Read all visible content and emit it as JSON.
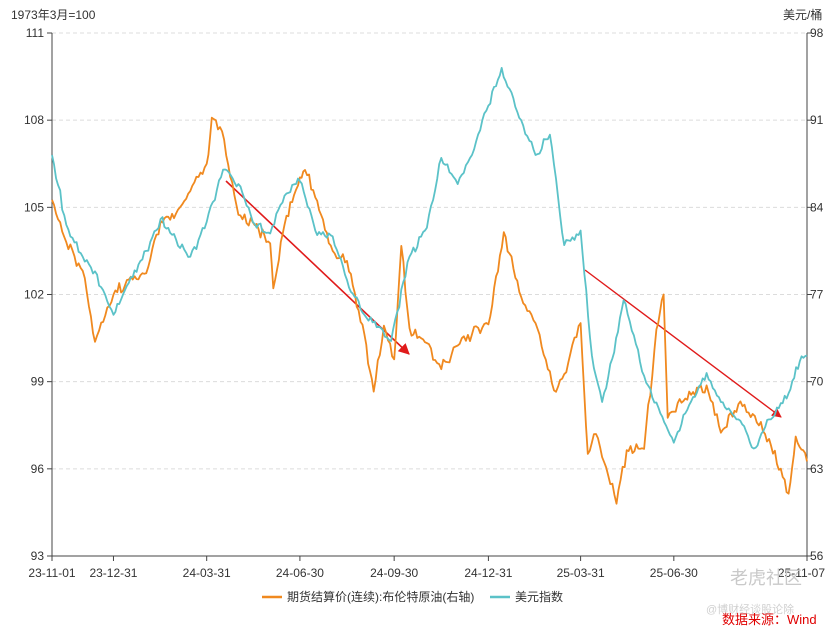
{
  "chart_data": {
    "type": "line",
    "left_axis_unit": "1973年3月=100",
    "right_axis_unit": "美元/桶",
    "left_ticks": [
      93,
      96,
      99,
      102,
      105,
      108,
      111
    ],
    "right_ticks": [
      56,
      63,
      70,
      77,
      84,
      91,
      98
    ],
    "left_range": [
      93,
      111
    ],
    "right_range": [
      56,
      98
    ],
    "x_range": [
      "2023-11-01",
      "2025-11-07"
    ],
    "x_ticks": [
      {
        "date": "2023-11-01",
        "label": "23-11-01"
      },
      {
        "date": "2023-12-31",
        "label": "23-12-31"
      },
      {
        "date": "2024-03-31",
        "label": "24-03-31"
      },
      {
        "date": "2024-06-30",
        "label": "24-06-30"
      },
      {
        "date": "2024-09-30",
        "label": "24-09-30"
      },
      {
        "date": "2024-12-31",
        "label": "24-12-31"
      },
      {
        "date": "2025-03-31",
        "label": "25-03-31"
      },
      {
        "date": "2025-06-30",
        "label": "25-06-30"
      },
      {
        "date": "2025-11-07",
        "label": "25-11-07"
      }
    ],
    "grid": "horizontal dashed",
    "legend_position": "bottom",
    "series": [
      {
        "name": "期货结算价(连续):布伦特原油(右轴)",
        "axis": "right",
        "color": "#f0891f",
        "points": [
          [
            "2023-11-01",
            84.6
          ],
          [
            "2023-11-15",
            81.2
          ],
          [
            "2023-12-01",
            78.9
          ],
          [
            "2023-12-13",
            73.2
          ],
          [
            "2023-12-31",
            77.0
          ],
          [
            "2024-01-15",
            78.2
          ],
          [
            "2024-02-01",
            78.7
          ],
          [
            "2024-02-15",
            82.9
          ],
          [
            "2024-03-01",
            83.5
          ],
          [
            "2024-03-15",
            85.3
          ],
          [
            "2024-03-31",
            87.5
          ],
          [
            "2024-04-05",
            91.2
          ],
          [
            "2024-04-15",
            90.1
          ],
          [
            "2024-05-01",
            83.4
          ],
          [
            "2024-05-15",
            82.8
          ],
          [
            "2024-06-01",
            81.1
          ],
          [
            "2024-06-04",
            77.5
          ],
          [
            "2024-06-15",
            82.6
          ],
          [
            "2024-06-30",
            86.4
          ],
          [
            "2024-07-05",
            87.0
          ],
          [
            "2024-07-15",
            84.8
          ],
          [
            "2024-08-01",
            80.5
          ],
          [
            "2024-08-15",
            79.7
          ],
          [
            "2024-09-01",
            73.8
          ],
          [
            "2024-09-10",
            69.2
          ],
          [
            "2024-09-20",
            74.5
          ],
          [
            "2024-09-30",
            71.8
          ],
          [
            "2024-10-07",
            80.9
          ],
          [
            "2024-10-15",
            74.3
          ],
          [
            "2024-11-01",
            73.1
          ],
          [
            "2024-11-15",
            71.0
          ],
          [
            "2024-12-01",
            72.9
          ],
          [
            "2024-12-15",
            73.8
          ],
          [
            "2024-12-31",
            74.6
          ],
          [
            "2025-01-15",
            82.0
          ],
          [
            "2025-02-01",
            76.8
          ],
          [
            "2025-02-15",
            74.7
          ],
          [
            "2025-03-05",
            69.3
          ],
          [
            "2025-03-15",
            70.6
          ],
          [
            "2025-03-31",
            74.7
          ],
          [
            "2025-04-07",
            64.2
          ],
          [
            "2025-04-15",
            65.8
          ],
          [
            "2025-05-05",
            60.2
          ],
          [
            "2025-05-15",
            64.5
          ],
          [
            "2025-06-01",
            64.6
          ],
          [
            "2025-06-13",
            74.2
          ],
          [
            "2025-06-20",
            77.0
          ],
          [
            "2025-06-24",
            67.1
          ],
          [
            "2025-06-30",
            67.6
          ],
          [
            "2025-07-15",
            69.2
          ],
          [
            "2025-08-01",
            69.7
          ],
          [
            "2025-08-15",
            65.9
          ],
          [
            "2025-09-01",
            68.2
          ],
          [
            "2025-09-15",
            67.4
          ],
          [
            "2025-10-01",
            65.4
          ],
          [
            "2025-10-20",
            61.0
          ],
          [
            "2025-10-27",
            65.6
          ],
          [
            "2025-11-07",
            63.6
          ]
        ]
      },
      {
        "name": "美元指数",
        "axis": "left",
        "color": "#5bc2c8",
        "points": [
          [
            "2023-11-01",
            106.8
          ],
          [
            "2023-11-15",
            104.4
          ],
          [
            "2023-12-01",
            103.3
          ],
          [
            "2023-12-13",
            102.8
          ],
          [
            "2023-12-31",
            101.3
          ],
          [
            "2024-01-15",
            102.4
          ],
          [
            "2024-02-01",
            103.5
          ],
          [
            "2024-02-15",
            104.6
          ],
          [
            "2024-03-01",
            103.9
          ],
          [
            "2024-03-15",
            103.3
          ],
          [
            "2024-03-31",
            104.5
          ],
          [
            "2024-04-16",
            106.3
          ],
          [
            "2024-05-01",
            105.8
          ],
          [
            "2024-05-15",
            104.5
          ],
          [
            "2024-06-01",
            104.1
          ],
          [
            "2024-06-15",
            105.4
          ],
          [
            "2024-06-30",
            105.9
          ],
          [
            "2024-07-15",
            104.2
          ],
          [
            "2024-08-01",
            104.0
          ],
          [
            "2024-08-15",
            102.5
          ],
          [
            "2024-09-01",
            101.3
          ],
          [
            "2024-09-15",
            100.9
          ],
          [
            "2024-09-27",
            100.4
          ],
          [
            "2024-10-15",
            103.3
          ],
          [
            "2024-11-01",
            104.3
          ],
          [
            "2024-11-15",
            106.7
          ],
          [
            "2024-12-01",
            105.8
          ],
          [
            "2024-12-15",
            106.8
          ],
          [
            "2024-12-31",
            108.5
          ],
          [
            "2025-01-13",
            109.8
          ],
          [
            "2025-02-01",
            108.0
          ],
          [
            "2025-02-15",
            106.8
          ],
          [
            "2025-03-01",
            107.5
          ],
          [
            "2025-03-15",
            103.7
          ],
          [
            "2025-03-31",
            104.2
          ],
          [
            "2025-04-11",
            99.9
          ],
          [
            "2025-04-21",
            98.3
          ],
          [
            "2025-05-01",
            99.8
          ],
          [
            "2025-05-12",
            101.8
          ],
          [
            "2025-06-01",
            99.2
          ],
          [
            "2025-06-15",
            98.1
          ],
          [
            "2025-06-30",
            96.9
          ],
          [
            "2025-07-15",
            98.2
          ],
          [
            "2025-08-01",
            99.3
          ],
          [
            "2025-08-15",
            98.3
          ],
          [
            "2025-09-01",
            97.7
          ],
          [
            "2025-09-16",
            96.7
          ],
          [
            "2025-10-01",
            97.7
          ],
          [
            "2025-10-20",
            98.6
          ],
          [
            "2025-10-31",
            99.7
          ],
          [
            "2025-11-07",
            99.9
          ]
        ]
      }
    ]
  },
  "source": "数据来源：Wind",
  "watermark": {
    "main": "老虎社区",
    "sub": "@博财经谈股论除"
  }
}
